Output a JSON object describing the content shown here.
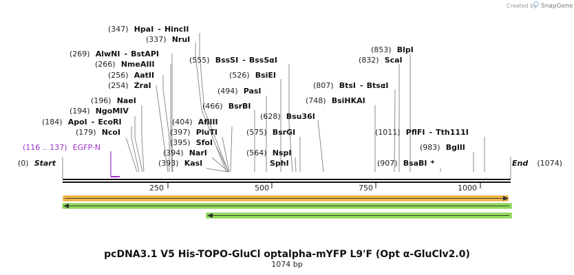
{
  "credit": {
    "created_by": "Created by",
    "brand": "SnapGene"
  },
  "sequence": {
    "length": 1074,
    "start_label": "Start",
    "end_label": "End",
    "start_pos": "(0)",
    "end_pos": "(1074)"
  },
  "ruler": {
    "ticks": [
      "250",
      "500",
      "750",
      "1000"
    ]
  },
  "sites": [
    {
      "pos": "(347)",
      "name": "HpaI",
      "name2": "HincII",
      "loc": 347
    },
    {
      "pos": "(337)",
      "name": "NruI",
      "loc": 337
    },
    {
      "pos": "(269)",
      "name": "AlwNI",
      "name2": "BstAPI",
      "loc": 269
    },
    {
      "pos": "(266)",
      "name": "NmeAIII",
      "loc": 266
    },
    {
      "pos": "(256)",
      "name": "AatII",
      "loc": 256
    },
    {
      "pos": "(254)",
      "name": "ZraI",
      "loc": 254
    },
    {
      "pos": "(196)",
      "name": "NaeI",
      "loc": 196
    },
    {
      "pos": "(194)",
      "name": "NgoMIV",
      "loc": 194
    },
    {
      "pos": "(184)",
      "name": "ApoI",
      "name2": "EcoRI",
      "loc": 184
    },
    {
      "pos": "(179)",
      "name": "NcoI",
      "loc": 179
    },
    {
      "pos": "(555)",
      "name": "BssSI",
      "name2": "BssSαI",
      "loc": 555
    },
    {
      "pos": "(526)",
      "name": "BsiEI",
      "loc": 526
    },
    {
      "pos": "(494)",
      "name": "PasI",
      "loc": 494
    },
    {
      "pos": "(466)",
      "name": "BsrBI",
      "loc": 466
    },
    {
      "pos": "(404)",
      "name": "AflIII",
      "loc": 404
    },
    {
      "pos": "(397)",
      "name": "PluTI",
      "loc": 397
    },
    {
      "pos": "(395)",
      "name": "SfoI",
      "loc": 395
    },
    {
      "pos": "(394)",
      "name": "NarI",
      "loc": 394
    },
    {
      "pos": "(393)",
      "name": "KasI",
      "loc": 393
    },
    {
      "pos": "(628)",
      "name": "Bsu36I",
      "loc": 628
    },
    {
      "pos": "(575)",
      "name": "BsrGI",
      "loc": 575
    },
    {
      "pos": "(564)",
      "name": "NspI",
      "loc": 564
    },
    {
      "pos": "",
      "name": "SphI",
      "loc": 564
    },
    {
      "pos": "(853)",
      "name": "BlpI",
      "loc": 853
    },
    {
      "pos": "(832)",
      "name": "ScaI",
      "loc": 832
    },
    {
      "pos": "(807)",
      "name": "BtsI",
      "name2": "BtsαI",
      "loc": 807
    },
    {
      "pos": "(748)",
      "name": "BsiHKAI",
      "loc": 748
    },
    {
      "pos": "(1011)",
      "name": "PflFI",
      "name2": "Tth111I",
      "loc": 1011
    },
    {
      "pos": "(983)",
      "name": "BglII",
      "loc": 983
    },
    {
      "pos": "(907)",
      "name": "BsaBI",
      "mark": "*",
      "loc": 907
    }
  ],
  "features": [
    {
      "name": "EGFP-N",
      "range": "(116 .. 137)",
      "start": 116,
      "end": 137,
      "color": "#9b30c9"
    }
  ],
  "orfs": [
    {
      "direction": "forward",
      "start": 0,
      "end": 1074,
      "color": "#f5b84a",
      "stroke": "#8a5a00"
    },
    {
      "direction": "reverse",
      "start": 0,
      "end": 1074,
      "color": "#96e05a",
      "stroke": "#2f7a10"
    },
    {
      "direction": "reverse",
      "start": 350,
      "end": 1074,
      "color": "#96e05a",
      "stroke": "#2f7a10"
    }
  ],
  "title": "pcDNA3.1 V5 His-TOPO-GluCl optalpha-mYFP L9'F (Opt α-GluClv2.0)",
  "subtitle": "1074 bp"
}
